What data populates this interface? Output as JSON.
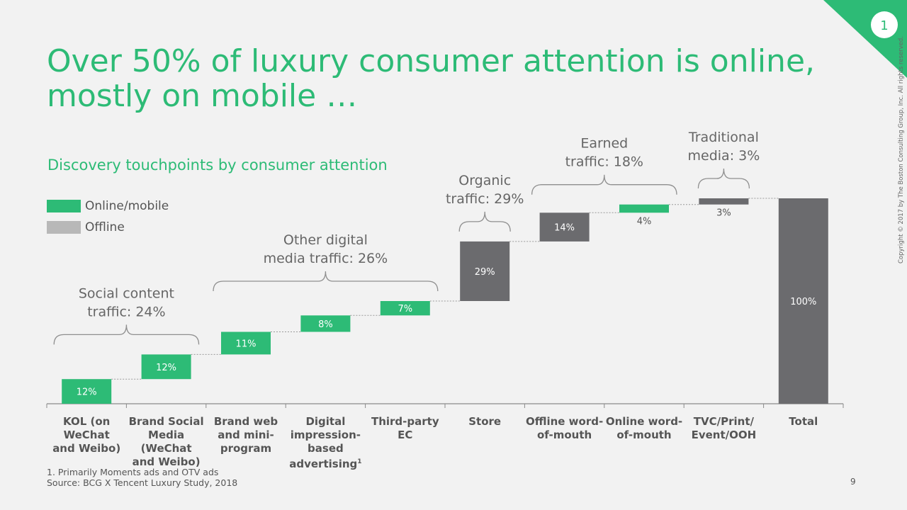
{
  "slide": {
    "title": "Over 50% of luxury consumer attention is online, mostly on mobile …",
    "badge": "1",
    "page_number": "9",
    "footnote": "1. Primarily Moments ads and OTV ads",
    "source": "Source: BCG X Tencent Luxury Study, 2018",
    "copyright": "Copyright © 2017 by The Boston Consulting Group, Inc. All rights reserved."
  },
  "colors": {
    "online": "#2dbb76",
    "offline": "#6b6b6e",
    "legend_offline": "#b8b8b8",
    "text": "#555555"
  },
  "chart_data": {
    "type": "waterfall",
    "title": "Discovery touchpoints by consumer attention",
    "legend": [
      {
        "label": "Online/mobile",
        "color": "#2dbb76"
      },
      {
        "label": "Offline",
        "color": "#b8b8b8"
      }
    ],
    "categories": [
      "KOL (on WeChat and Weibo)",
      "Brand Social Media (WeChat and Weibo)",
      "Brand web and mini-program",
      "Digital impression-based advertising",
      "Third-party EC",
      "Store",
      "Offline word-of-mouth",
      "Online word-of-mouth",
      "TVC/Print/ Event/OOH",
      "Total"
    ],
    "category_lines": [
      [
        "KOL (on",
        "WeChat",
        "and Weibo)"
      ],
      [
        "Brand Social",
        "Media (WeChat",
        "and Weibo)"
      ],
      [
        "Brand web",
        "and mini-",
        "program"
      ],
      [
        "Digital",
        "impression-",
        "based",
        "advertising"
      ],
      [
        "Third-party EC"
      ],
      [
        "Store"
      ],
      [
        "Offline word-",
        "of-mouth"
      ],
      [
        "Online word-",
        "of-mouth"
      ],
      [
        "TVC/Print/",
        "Event/OOH"
      ],
      [
        "Total"
      ]
    ],
    "footnote_marker_category": 3,
    "footnote_marker": "1",
    "values": [
      12,
      12,
      11,
      8,
      7,
      29,
      14,
      4,
      3,
      100
    ],
    "value_labels": [
      "12%",
      "12%",
      "11%",
      "8%",
      "7%",
      "29%",
      "14%",
      "4%",
      "3%",
      "100%"
    ],
    "channel": [
      "online",
      "online",
      "online",
      "online",
      "online",
      "offline",
      "offline",
      "online",
      "offline",
      "offline"
    ],
    "ylim": [
      0,
      100
    ],
    "groups": [
      {
        "lines": [
          "Social content",
          "traffic: 24%"
        ],
        "start": 0,
        "end": 1,
        "value": 24
      },
      {
        "lines": [
          "Other digital",
          "media traffic: 26%"
        ],
        "start": 2,
        "end": 4,
        "value": 26
      },
      {
        "lines": [
          "Organic",
          "traffic: 29%"
        ],
        "start": 5,
        "end": 5,
        "value": 29
      },
      {
        "lines": [
          "Earned",
          "traffic: 18%"
        ],
        "start": 6,
        "end": 7,
        "value": 18
      },
      {
        "lines": [
          "Traditional",
          "media: 3%"
        ],
        "start": 8,
        "end": 8,
        "value": 3
      }
    ]
  }
}
